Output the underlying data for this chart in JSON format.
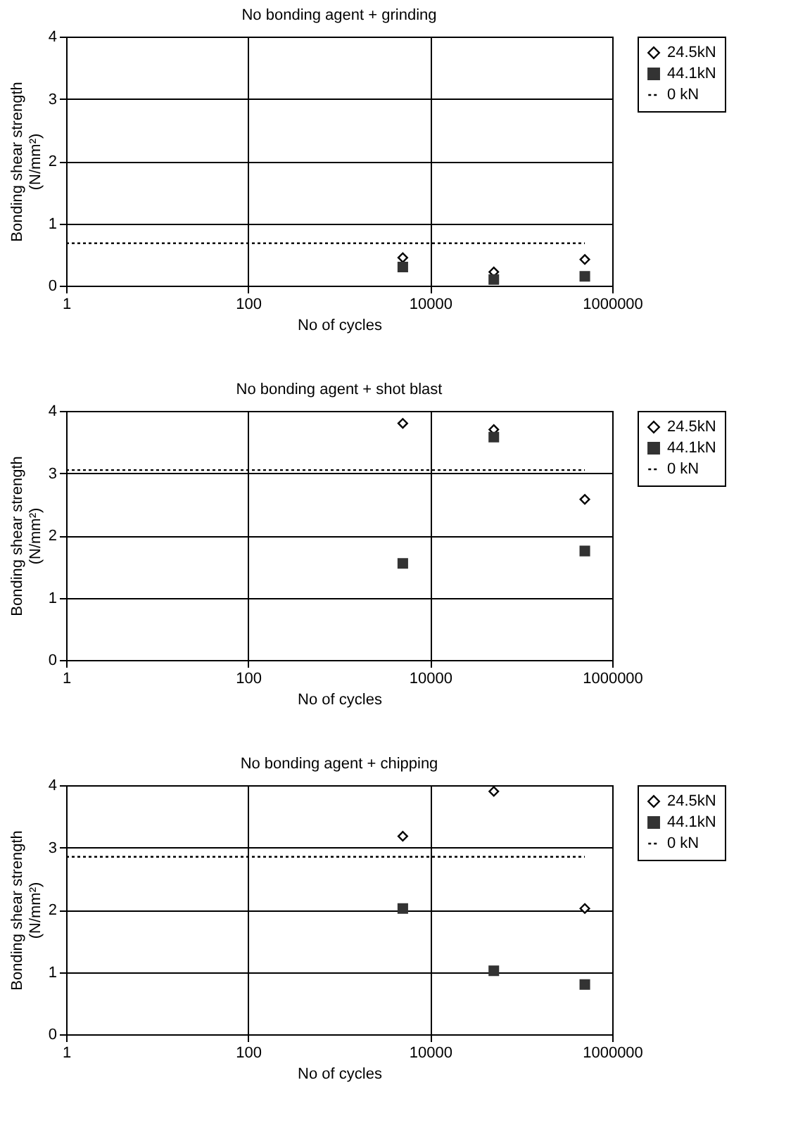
{
  "chart_data": [
    {
      "type": "scatter",
      "title": "No bonding agent + grinding",
      "xlabel": "No of cycles",
      "ylabel": "Bonding shear strength\n(N/mm²)",
      "log": "x",
      "grid": true,
      "legend": "right",
      "xlim": [
        1,
        1000000
      ],
      "xticks": [
        1,
        100,
        10000,
        1000000
      ],
      "ylim": [
        0,
        4
      ],
      "yticks": [
        0,
        1,
        2,
        3,
        4
      ],
      "series": [
        {
          "name": "24.5kN",
          "type": "scatter",
          "marker": "diamond",
          "color": "#000000",
          "x": [
            5000,
            50000,
            500000
          ],
          "values": [
            0.45,
            0.22,
            0.42
          ]
        },
        {
          "name": "44.1kN",
          "type": "scatter",
          "marker": "square",
          "color": "#333333",
          "x": [
            5000,
            50000,
            500000
          ],
          "values": [
            0.3,
            0.1,
            0.15
          ]
        },
        {
          "name": "0 kN",
          "type": "line",
          "marker": "none",
          "line_style": "dotted",
          "color": "#000000",
          "x": [
            1,
            500000
          ],
          "values": [
            0.68,
            0.68
          ]
        }
      ]
    },
    {
      "type": "scatter",
      "title": "No bonding agent + shot blast",
      "xlabel": "No of cycles",
      "ylabel": "Bonding shear strength\n(N/mm²)",
      "log": "x",
      "grid": true,
      "legend": "right",
      "xlim": [
        1,
        1000000
      ],
      "xticks": [
        1,
        100,
        10000,
        1000000
      ],
      "ylim": [
        0,
        4
      ],
      "yticks": [
        0,
        1,
        2,
        3,
        4
      ],
      "series": [
        {
          "name": "24.5kN",
          "type": "scatter",
          "marker": "diamond",
          "color": "#000000",
          "x": [
            5000,
            50000,
            500000
          ],
          "values": [
            3.8,
            3.7,
            2.58
          ]
        },
        {
          "name": "44.1kN",
          "type": "scatter",
          "marker": "square",
          "color": "#333333",
          "x": [
            5000,
            50000,
            500000
          ],
          "values": [
            1.55,
            3.58,
            1.75
          ]
        },
        {
          "name": "0 kN",
          "type": "line",
          "marker": "none",
          "line_style": "dotted",
          "color": "#000000",
          "x": [
            1,
            500000
          ],
          "values": [
            3.05,
            3.05
          ]
        }
      ]
    },
    {
      "type": "scatter",
      "title": "No bonding agent + chipping",
      "xlabel": "No of cycles",
      "ylabel": "Bonding shear strength\n(N/mm²)",
      "log": "x",
      "grid": true,
      "legend": "right",
      "xlim": [
        1,
        1000000
      ],
      "xticks": [
        1,
        100,
        10000,
        1000000
      ],
      "ylim": [
        0,
        4
      ],
      "yticks": [
        0,
        1,
        2,
        3,
        4
      ],
      "series": [
        {
          "name": "24.5kN",
          "type": "scatter",
          "marker": "diamond",
          "color": "#000000",
          "x": [
            5000,
            50000,
            500000
          ],
          "values": [
            3.18,
            3.9,
            2.02
          ]
        },
        {
          "name": "44.1kN",
          "type": "scatter",
          "marker": "square",
          "color": "#333333",
          "x": [
            5000,
            50000,
            500000
          ],
          "values": [
            2.02,
            1.02,
            0.8
          ]
        },
        {
          "name": "0 kN",
          "type": "line",
          "marker": "none",
          "line_style": "dotted",
          "color": "#000000",
          "x": [
            1,
            500000
          ],
          "values": [
            2.85,
            2.85
          ]
        }
      ]
    }
  ]
}
